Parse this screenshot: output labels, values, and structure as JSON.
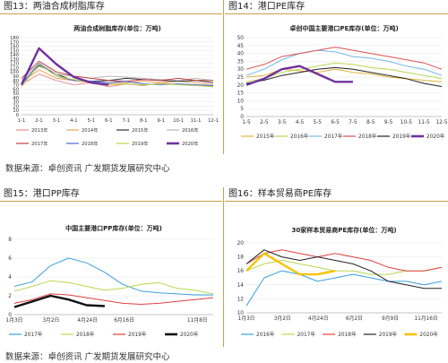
{
  "source_top": "数据来源：卓创资讯  广发期货发展研究中心",
  "source_bottom": "数据来源：卓创资讯  广发期货发展研究中心",
  "figures": [
    {
      "label": "图13：两油合成树脂库存"
    },
    {
      "label": "图14：港口PE库存"
    },
    {
      "label": "图15：港口PP库存"
    },
    {
      "label": "图16：样本贸易商PE库存"
    }
  ],
  "chart_data": [
    {
      "type": "line",
      "title": "两油合成树脂库存(单位：万吨)",
      "ylim": [
        0,
        180
      ],
      "yticks": [
        "0",
        "10",
        "20",
        "30",
        "40",
        "50",
        "60",
        "70",
        "80",
        "90",
        "100",
        "110",
        "120",
        "130",
        "140",
        "150",
        "160",
        "170",
        "180"
      ],
      "xticks": [
        "1-1",
        "2-1",
        "3-1",
        "4-1",
        "5-1",
        "6-1",
        "7-1",
        "8-1",
        "9-1",
        "10-1",
        "11-1",
        "12-1"
      ],
      "x_count": 12,
      "series": [
        {
          "name": "2013年",
          "color": "#ec8f94",
          "values": [
            70,
            95,
            80,
            70,
            75,
            65,
            72,
            68,
            75,
            70,
            70,
            65
          ]
        },
        {
          "name": "2014年",
          "color": "#f0a25c",
          "values": [
            75,
            105,
            85,
            80,
            75,
            72,
            75,
            78,
            75,
            78,
            75,
            70
          ]
        },
        {
          "name": "2015年",
          "color": "#333333",
          "values": [
            72,
            115,
            95,
            80,
            78,
            80,
            85,
            82,
            80,
            78,
            80,
            75
          ]
        },
        {
          "name": "2016年",
          "color": "#b8b8b8",
          "values": [
            80,
            120,
            95,
            90,
            85,
            90,
            88,
            85,
            82,
            80,
            85,
            80
          ]
        },
        {
          "name": "2017年",
          "color": "#c04040",
          "values": [
            85,
            125,
            100,
            90,
            85,
            80,
            78,
            82,
            80,
            85,
            80,
            80
          ]
        },
        {
          "name": "2018年",
          "color": "#4a6ad8",
          "values": [
            70,
            120,
            90,
            80,
            78,
            75,
            78,
            72,
            70,
            72,
            70,
            68
          ]
        },
        {
          "name": "2019年",
          "color": "#b8d850",
          "values": [
            65,
            118,
            90,
            82,
            75,
            70,
            72,
            70,
            72,
            70,
            68,
            65
          ]
        },
        {
          "name": "2020年",
          "color": "#7030a0",
          "values": [
            70,
            155,
            118,
            88,
            75,
            70
          ]
        }
      ]
    },
    {
      "type": "line",
      "title": "卓创中国主要港口PE库存(单位：万吨)",
      "ylim": [
        0,
        50
      ],
      "yticks": [
        "0",
        "5",
        "10",
        "15",
        "20",
        "25",
        "30",
        "35",
        "40",
        "45",
        "50"
      ],
      "xticks": [
        "1-5",
        "2-5",
        "3-5",
        "4-5",
        "5-5",
        "6-5",
        "7-5",
        "8-5",
        "9-5",
        "10-5",
        "11-5",
        "12-5"
      ],
      "x_count": 12,
      "series": [
        {
          "name": "2015年",
          "color": "#e2b23c",
          "values": [
            25,
            26,
            30,
            29,
            28,
            30,
            28,
            27,
            25,
            24,
            23,
            22
          ]
        },
        {
          "name": "2016年",
          "color": "#b8d850",
          "values": [
            22,
            24,
            28,
            30,
            32,
            34,
            33,
            31,
            30,
            28,
            26,
            24
          ]
        },
        {
          "name": "2017年",
          "color": "#6fb7e8",
          "values": [
            26,
            30,
            36,
            40,
            42,
            41,
            38,
            37,
            35,
            32,
            30,
            26
          ]
        },
        {
          "name": "2018年",
          "color": "#e05050",
          "values": [
            30,
            33,
            38,
            40,
            42,
            44,
            42,
            40,
            38,
            36,
            34,
            30
          ]
        },
        {
          "name": "2019年",
          "color": "#222222",
          "values": [
            21,
            23,
            26,
            28,
            30,
            31,
            30,
            28,
            26,
            24,
            21,
            19
          ]
        },
        {
          "name": "2020年",
          "color": "#7030a0",
          "values": [
            20,
            24,
            30,
            32,
            27,
            22,
            22
          ]
        }
      ]
    },
    {
      "type": "line",
      "title": "中国主要港口PP库存(单位：万吨)",
      "ylim": [
        0,
        8
      ],
      "yticks": [
        "0",
        "2",
        "4",
        "6",
        "8"
      ],
      "xticks": [
        "1月3日",
        "3月2日",
        "4月24日",
        "6月16日",
        "",
        "11月8日"
      ],
      "x_count": 12,
      "series": [
        {
          "name": "2017年",
          "color": "#3aa0e0",
          "values": [
            3.0,
            3.5,
            5.2,
            6.0,
            5.5,
            4.5,
            3.2,
            2.5,
            2.3,
            2.2,
            2.1,
            2.1
          ]
        },
        {
          "name": "2018年",
          "color": "#b8d850",
          "values": [
            2.5,
            3.0,
            3.6,
            3.4,
            3.0,
            2.6,
            2.8,
            3.2,
            3.4,
            2.8,
            2.6,
            2.2
          ]
        },
        {
          "name": "2019年",
          "color": "#e04040",
          "values": [
            1.2,
            1.6,
            2.2,
            2.1,
            1.8,
            1.5,
            1.2,
            1.1,
            1.2,
            1.4,
            1.6,
            1.8
          ]
        },
        {
          "name": "2020年",
          "color": "#111111",
          "values": [
            0.8,
            1.4,
            2.0,
            1.6,
            1.0,
            0.9
          ]
        }
      ]
    },
    {
      "type": "line",
      "title": "30家样本贸易商PE库存(单位：万吨)",
      "ylim": [
        10,
        20
      ],
      "yticks": [
        "10",
        "12",
        "14",
        "16",
        "18",
        "20"
      ],
      "xticks": [
        "1月3日",
        "3月2日",
        "4月24日",
        "6月2日",
        "9月9日",
        "11月16日"
      ],
      "x_count": 12,
      "series": [
        {
          "name": "2016年",
          "color": "#3aa0e0",
          "values": [
            11.0,
            15.0,
            16.0,
            15.5,
            14.5,
            15.0,
            15.5,
            15.0,
            14.5,
            14.5,
            14.0,
            14.5
          ]
        },
        {
          "name": "2017年",
          "color": "#b8d850",
          "values": [
            16.0,
            17.0,
            17.5,
            17.0,
            16.5,
            16.0,
            16.0,
            15.5,
            15.5,
            16.0,
            16.0,
            16.5
          ]
        },
        {
          "name": "2018年",
          "color": "#e04040",
          "values": [
            17.0,
            18.5,
            19.0,
            18.5,
            18.0,
            18.5,
            18.0,
            17.5,
            16.5,
            16.0,
            16.0,
            16.5
          ]
        },
        {
          "name": "2019年",
          "color": "#222222",
          "values": [
            17.0,
            19.0,
            18.0,
            17.5,
            18.0,
            17.5,
            17.0,
            16.0,
            14.5,
            14.0,
            13.5,
            13.5
          ]
        },
        {
          "name": "2020年",
          "color": "#f5c400",
          "values": [
            16.0,
            18.5,
            17.0,
            15.5,
            15.5,
            16.0
          ]
        }
      ]
    }
  ]
}
